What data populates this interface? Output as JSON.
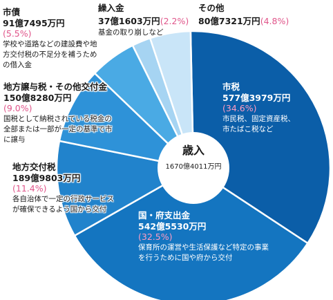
{
  "chart_data": {
    "type": "pie",
    "title": "歳入",
    "total_label": "1670億4011万円",
    "slices": [
      {
        "name": "市税",
        "amount": "577億3979万円",
        "percent_label": "(34.6%)",
        "value": 34.6,
        "description": "市民税、固定資産税、市たばこ税など",
        "color": "#0b5ea8"
      },
      {
        "name": "国・府支出金",
        "amount": "542億5530万円",
        "percent_label": "(32.5%)",
        "value": 32.5,
        "description": "保育所の運営や生活保護など特定の事業を行うために国や府から交付",
        "color": "#1475c0"
      },
      {
        "name": "地方交付税",
        "amount": "189億9803万円",
        "percent_label": "(11.4%)",
        "value": 11.4,
        "description": "各自治体で一定の行政サービスが確保できるよう国から交付",
        "color": "#2183cc"
      },
      {
        "name": "地方譲与税・その他交付金",
        "amount": "150億8280万円",
        "percent_label": "(9.0%)",
        "value": 9.0,
        "description": "国税として納税されている税金の全部または一部が一定の基準で市に譲与",
        "color": "#2e92d8"
      },
      {
        "name": "市債",
        "amount": "91億7495万円",
        "percent_label": "(5.5%)",
        "value": 5.5,
        "description": "学校や道路などの建設費や地方交付税の不足分を補うための借入金",
        "color": "#4aaae4"
      },
      {
        "name": "繰入金",
        "amount": "37億1603万円",
        "percent_label": "(2.2%)",
        "value": 2.2,
        "description": "基金の取り崩しなど",
        "color": "#a6d4f2"
      },
      {
        "name": "その他",
        "amount": "80億7321万円",
        "percent_label": "(4.8%)",
        "value": 4.8,
        "description": "",
        "color": "#c9e5f8"
      }
    ]
  }
}
